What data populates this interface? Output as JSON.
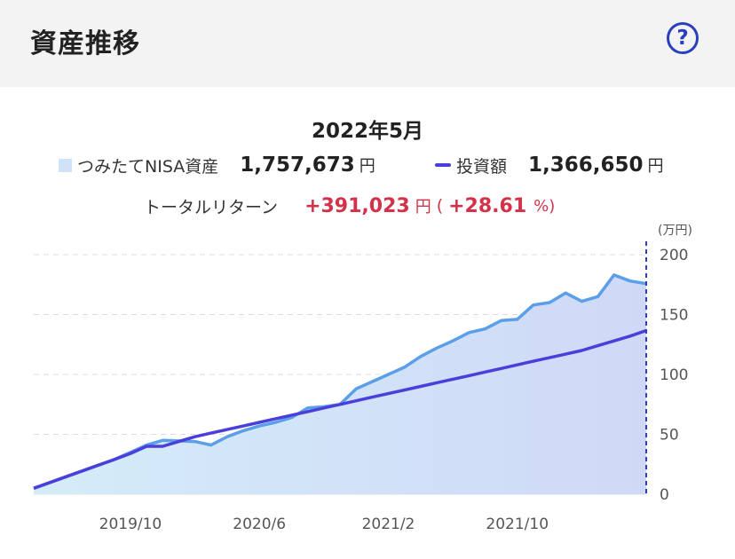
{
  "header": {
    "title": "資産推移",
    "help_icon": "?"
  },
  "summary": {
    "date": "2022年5月",
    "asset_label": "つみたてNISA資産",
    "asset_value": "1,757,673",
    "asset_unit": "円",
    "invest_label": "投資額",
    "invest_value": "1,366,650",
    "invest_unit": "円",
    "return_label": "トータルリターン",
    "return_value": "+391,023",
    "return_unit": "円",
    "return_paren_open": "(",
    "return_pct": "+28.61",
    "return_pct_unit": "%)"
  },
  "colors": {
    "asset_line": "#5b9fe8",
    "asset_fill": "#cfe2f7",
    "invest_line": "#4b3fdc",
    "return": "#d2334a",
    "cursor": "#2a3fbf"
  },
  "chart_data": {
    "type": "area",
    "ylabel": "(万円)",
    "ylim": [
      0,
      200
    ],
    "yticks": [
      0,
      50,
      100,
      150,
      200
    ],
    "xticks": [
      "2019/10",
      "2020/6",
      "2021/2",
      "2021/10"
    ],
    "grid": true,
    "series": [
      {
        "name": "つみたてNISA資産",
        "values": [
          5,
          9.8,
          14.6,
          19.4,
          24.2,
          29,
          35,
          41,
          45,
          44.5,
          44,
          41,
          48,
          53,
          57,
          60,
          64,
          72,
          73,
          75,
          88,
          94,
          100,
          106,
          115,
          122,
          128,
          135,
          138,
          145,
          146,
          158,
          160,
          168,
          161,
          165,
          183,
          178,
          175.8
        ]
      },
      {
        "name": "投資額",
        "values": [
          5,
          9.8,
          14.6,
          19.4,
          24.2,
          29,
          34,
          40,
          40,
          44,
          48,
          51,
          54,
          57,
          60,
          63,
          66,
          69,
          72,
          75,
          78,
          81,
          84,
          87,
          90,
          93,
          96,
          99,
          102,
          105,
          108,
          111,
          114,
          117,
          120,
          124,
          128,
          132,
          136.7
        ]
      }
    ]
  }
}
